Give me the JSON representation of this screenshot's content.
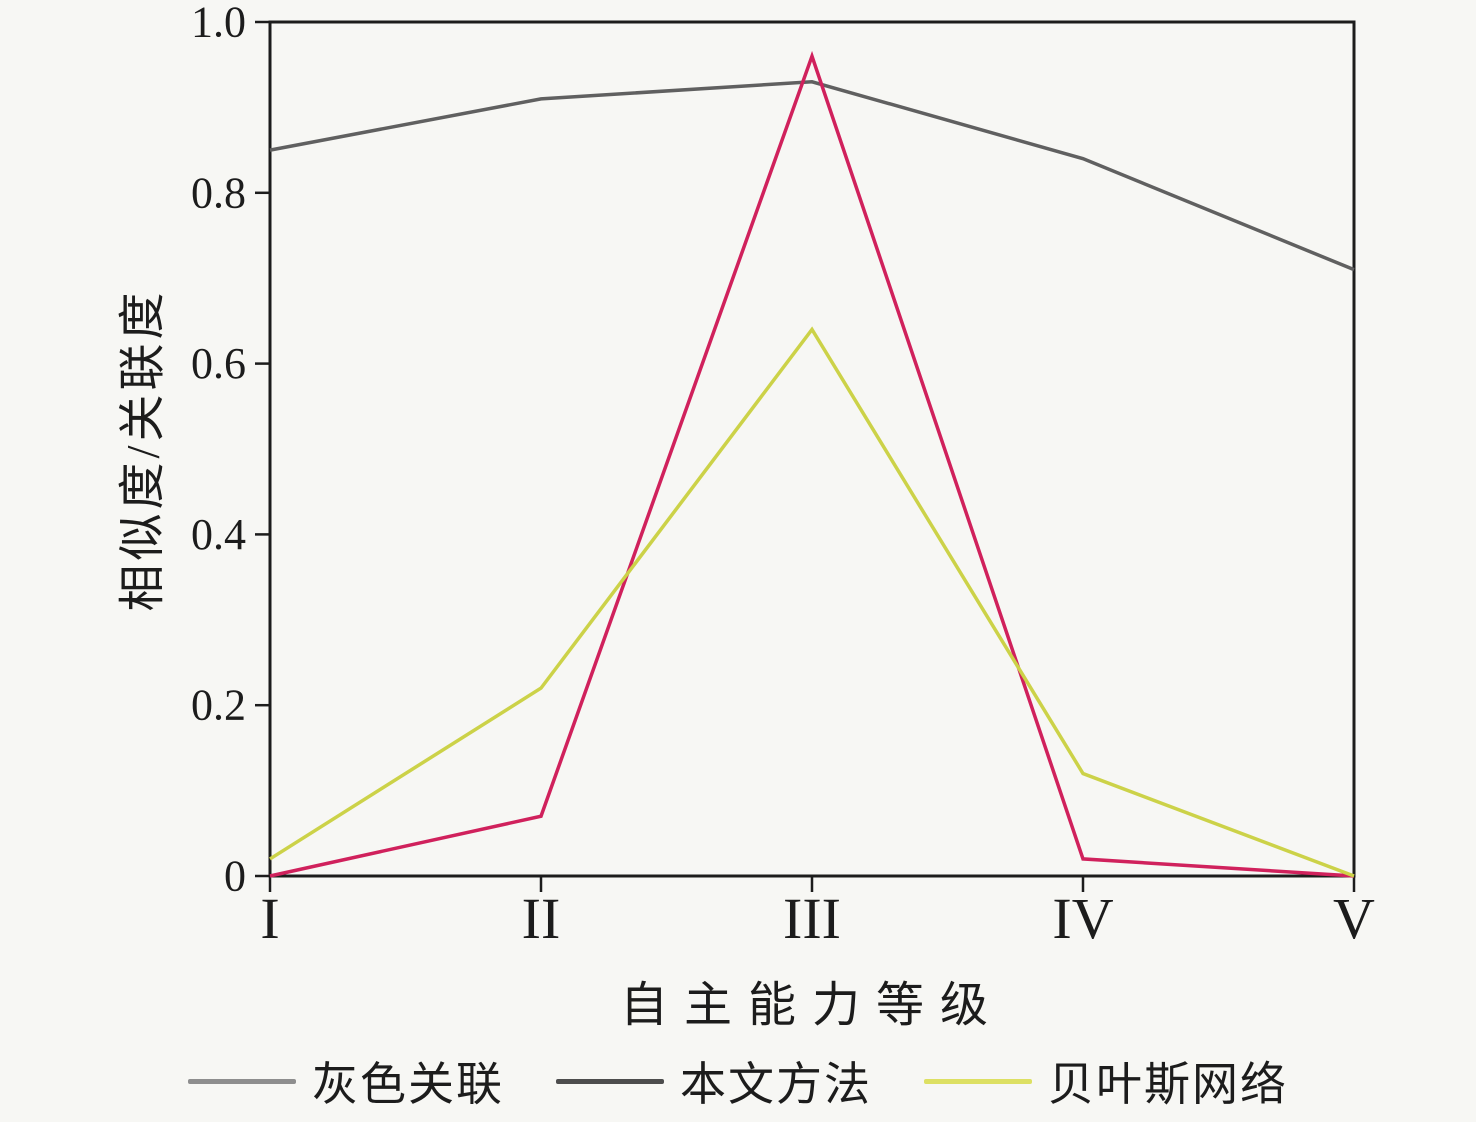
{
  "figure": {
    "background": "#f7f7f4",
    "axis_color": "#1c1c1c"
  },
  "chart_data": {
    "type": "line",
    "title": "",
    "xlabel": "自主能力等级",
    "ylabel": "相似度/关联度",
    "categories": [
      "I",
      "II",
      "III",
      "IV",
      "V"
    ],
    "series": [
      {
        "name": "灰色关联",
        "color": "#606060",
        "legend_color": "#8e8e8e",
        "values": [
          0.85,
          0.91,
          0.93,
          0.84,
          0.71
        ]
      },
      {
        "name": "本文方法",
        "color": "#d0215c",
        "legend_color": "#4d4d4d",
        "values": [
          0.0,
          0.07,
          0.96,
          0.02,
          0.0
        ]
      },
      {
        "name": "贝叶斯网络",
        "color": "#ccd248",
        "legend_color": "#dde063",
        "values": [
          0.02,
          0.22,
          0.64,
          0.12,
          0.0
        ]
      }
    ],
    "ylim": [
      0,
      1.0
    ],
    "yticks": [
      0,
      0.2,
      0.4,
      0.6,
      0.8,
      1.0
    ],
    "ytick_labels": [
      "0",
      "0.2",
      "0.4",
      "0.6",
      "0.8",
      "1.0"
    ],
    "grid": false,
    "legend_position": "bottom"
  }
}
